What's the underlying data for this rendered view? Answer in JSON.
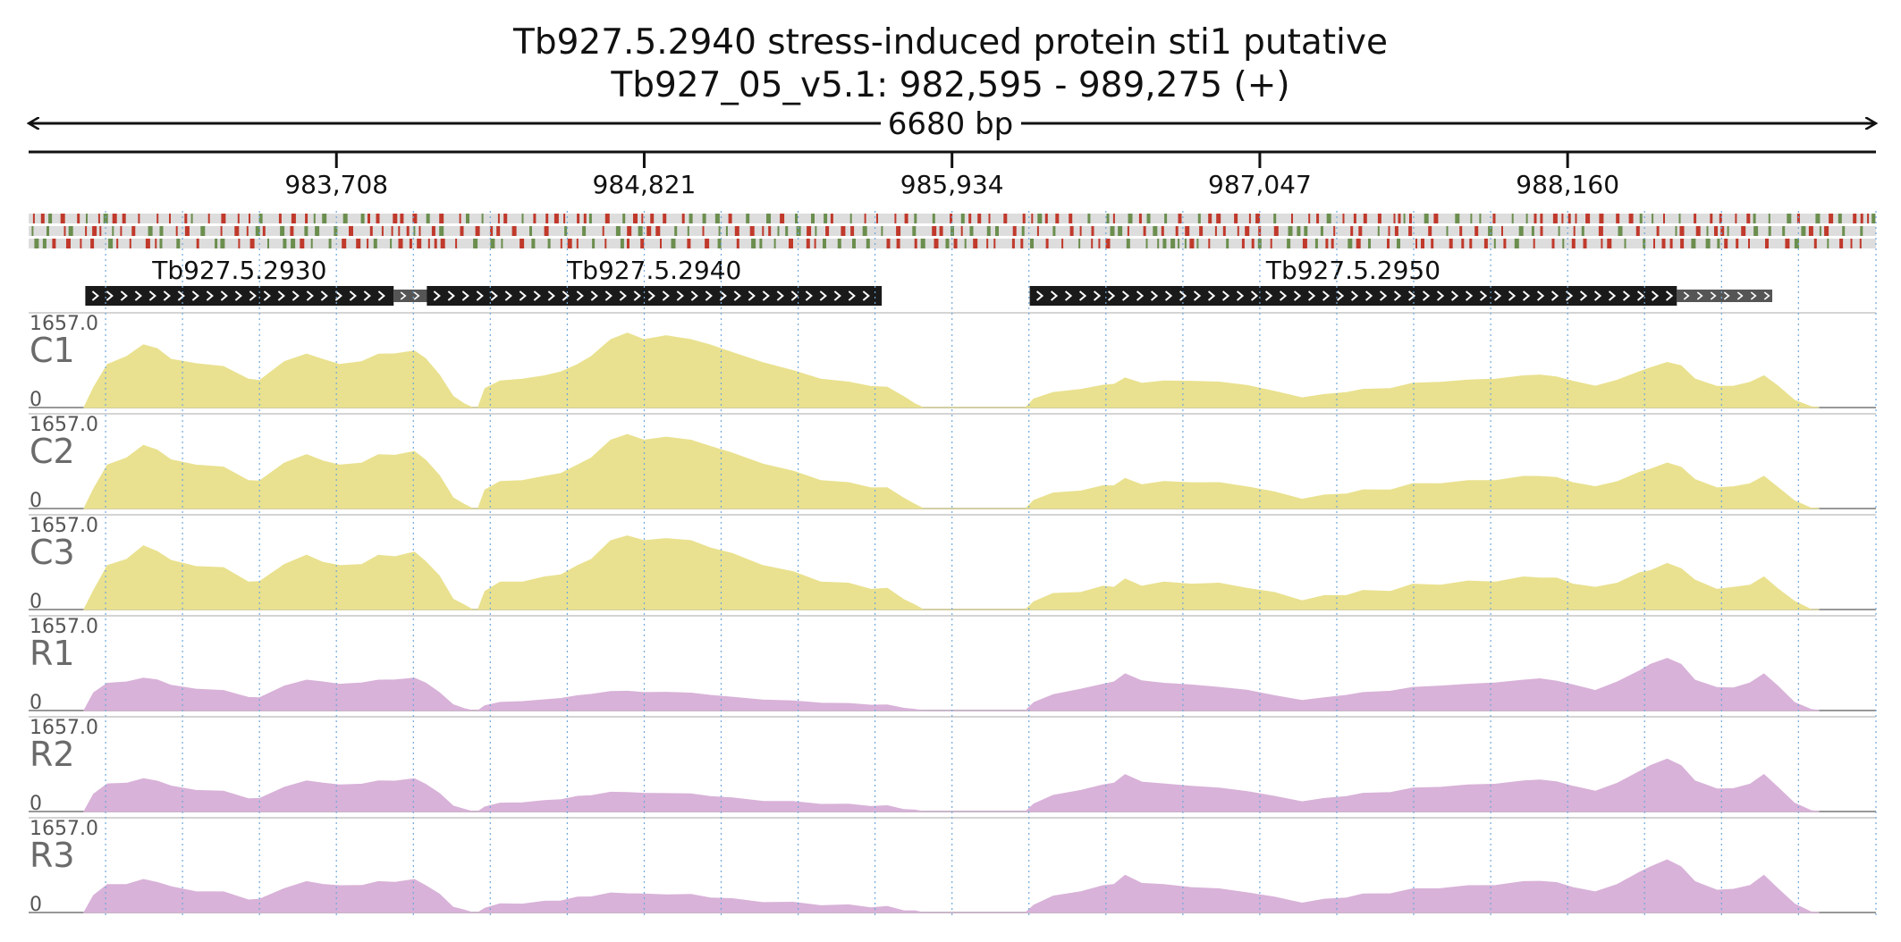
{
  "chart_data": {
    "type": "area",
    "title": "Tb927.5.2940  stress-induced protein sti1  putative",
    "subtitle": "Tb927_05_v5.1: 982,595 - 989,275 (+)",
    "span_label": "6680 bp",
    "xlim": [
      982595,
      989275
    ],
    "ticks": [
      {
        "value": 983708,
        "label": "983,708"
      },
      {
        "value": 984821,
        "label": "984,821"
      },
      {
        "value": 985934,
        "label": "985,934"
      },
      {
        "value": 987047,
        "label": "987,047"
      },
      {
        "value": 988160,
        "label": "988,160"
      }
    ],
    "genes": [
      {
        "name": "Tb927.5.2930",
        "start": 982800,
        "end": 983915,
        "utr_end": 984100,
        "strand": "+"
      },
      {
        "name": "Tb927.5.2940",
        "start": 984035,
        "end": 985680,
        "utr_end": 985680,
        "strand": "+"
      },
      {
        "name": "Tb927.5.2950",
        "start": 986215,
        "end": 988555,
        "utr_end": 988900,
        "strand": "+"
      }
    ],
    "tracks": [
      {
        "name": "C1",
        "ymax": "1657.0",
        "ymin": "0",
        "color": "#e9e18f",
        "group": "C"
      },
      {
        "name": "C2",
        "ymax": "1657.0",
        "ymin": "0",
        "color": "#e9e18f",
        "group": "C"
      },
      {
        "name": "C3",
        "ymax": "1657.0",
        "ymin": "0",
        "color": "#e9e18f",
        "group": "C"
      },
      {
        "name": "R1",
        "ymax": "1657.0",
        "ymin": "0",
        "color": "#d8b2d8",
        "group": "R"
      },
      {
        "name": "R2",
        "ymax": "1657.0",
        "ymin": "0",
        "color": "#d8b2d8",
        "group": "R"
      },
      {
        "name": "R3",
        "ymax": "1657.0",
        "ymin": "0",
        "color": "#d8b2d8",
        "group": "R"
      }
    ],
    "coverage_profiles": {
      "C": [
        [
          982795,
          0
        ],
        [
          982830,
          400
        ],
        [
          982880,
          820
        ],
        [
          982950,
          1000
        ],
        [
          983010,
          1200
        ],
        [
          983060,
          1150
        ],
        [
          983110,
          920
        ],
        [
          983200,
          860
        ],
        [
          983300,
          780
        ],
        [
          983390,
          560
        ],
        [
          983430,
          510
        ],
        [
          983520,
          900
        ],
        [
          983600,
          1020
        ],
        [
          983660,
          940
        ],
        [
          983720,
          820
        ],
        [
          983800,
          900
        ],
        [
          983860,
          1020
        ],
        [
          983920,
          1050
        ],
        [
          983990,
          1080
        ],
        [
          984030,
          960
        ],
        [
          984080,
          620
        ],
        [
          984130,
          230
        ],
        [
          984170,
          60
        ],
        [
          984200,
          0
        ],
        [
          984220,
          0
        ],
        [
          984245,
          380
        ],
        [
          984300,
          500
        ],
        [
          984380,
          560
        ],
        [
          984460,
          600
        ],
        [
          984520,
          700
        ],
        [
          984580,
          820
        ],
        [
          984630,
          1000
        ],
        [
          984700,
          1300
        ],
        [
          984760,
          1450
        ],
        [
          984820,
          1300
        ],
        [
          984900,
          1400
        ],
        [
          984990,
          1300
        ],
        [
          985060,
          1220
        ],
        [
          985140,
          1050
        ],
        [
          985250,
          880
        ],
        [
          985360,
          700
        ],
        [
          985460,
          560
        ],
        [
          985560,
          480
        ],
        [
          985640,
          420
        ],
        [
          985700,
          380
        ],
        [
          985760,
          220
        ],
        [
          985800,
          60
        ],
        [
          985830,
          0
        ],
        [
          986200,
          0
        ],
        [
          986230,
          180
        ],
        [
          986300,
          280
        ],
        [
          986400,
          360
        ],
        [
          986480,
          420
        ],
        [
          986520,
          460
        ],
        [
          986560,
          560
        ],
        [
          986620,
          480
        ],
        [
          986700,
          500
        ],
        [
          986800,
          520
        ],
        [
          986900,
          480
        ],
        [
          987000,
          440
        ],
        [
          987100,
          300
        ],
        [
          987200,
          200
        ],
        [
          987280,
          240
        ],
        [
          987360,
          300
        ],
        [
          987420,
          340
        ],
        [
          987520,
          380
        ],
        [
          987600,
          460
        ],
        [
          987700,
          500
        ],
        [
          987800,
          520
        ],
        [
          987900,
          560
        ],
        [
          988000,
          600
        ],
        [
          988060,
          640
        ],
        [
          988120,
          580
        ],
        [
          988180,
          520
        ],
        [
          988260,
          400
        ],
        [
          988340,
          540
        ],
        [
          988420,
          680
        ],
        [
          988460,
          780
        ],
        [
          988520,
          860
        ],
        [
          988570,
          820
        ],
        [
          988620,
          540
        ],
        [
          988700,
          420
        ],
        [
          988760,
          400
        ],
        [
          988820,
          500
        ],
        [
          988870,
          600
        ],
        [
          988920,
          430
        ],
        [
          988980,
          130
        ],
        [
          989040,
          30
        ],
        [
          989070,
          0
        ]
      ],
      "R": [
        [
          982795,
          0
        ],
        [
          982830,
          350
        ],
        [
          982880,
          520
        ],
        [
          982950,
          560
        ],
        [
          983010,
          620
        ],
        [
          983060,
          600
        ],
        [
          983110,
          480
        ],
        [
          983200,
          420
        ],
        [
          983300,
          380
        ],
        [
          983390,
          260
        ],
        [
          983430,
          240
        ],
        [
          983520,
          480
        ],
        [
          983600,
          580
        ],
        [
          983660,
          560
        ],
        [
          983720,
          500
        ],
        [
          983800,
          540
        ],
        [
          983860,
          580
        ],
        [
          983920,
          600
        ],
        [
          983990,
          620
        ],
        [
          984030,
          540
        ],
        [
          984080,
          340
        ],
        [
          984130,
          120
        ],
        [
          984170,
          30
        ],
        [
          984200,
          0
        ],
        [
          984220,
          0
        ],
        [
          984245,
          100
        ],
        [
          984300,
          150
        ],
        [
          984380,
          180
        ],
        [
          984460,
          200
        ],
        [
          984520,
          240
        ],
        [
          984580,
          280
        ],
        [
          984630,
          320
        ],
        [
          984700,
          360
        ],
        [
          984760,
          380
        ],
        [
          984820,
          340
        ],
        [
          984900,
          360
        ],
        [
          984990,
          330
        ],
        [
          985060,
          300
        ],
        [
          985140,
          250
        ],
        [
          985250,
          210
        ],
        [
          985360,
          180
        ],
        [
          985460,
          150
        ],
        [
          985560,
          130
        ],
        [
          985640,
          110
        ],
        [
          985700,
          100
        ],
        [
          985760,
          50
        ],
        [
          985800,
          15
        ],
        [
          985830,
          0
        ],
        [
          986200,
          0
        ],
        [
          986230,
          160
        ],
        [
          986300,
          300
        ],
        [
          986400,
          420
        ],
        [
          986480,
          500
        ],
        [
          986520,
          560
        ],
        [
          986560,
          700
        ],
        [
          986620,
          580
        ],
        [
          986700,
          520
        ],
        [
          986800,
          500
        ],
        [
          986900,
          440
        ],
        [
          987000,
          400
        ],
        [
          987100,
          280
        ],
        [
          987200,
          200
        ],
        [
          987280,
          240
        ],
        [
          987360,
          300
        ],
        [
          987420,
          340
        ],
        [
          987520,
          380
        ],
        [
          987600,
          440
        ],
        [
          987700,
          480
        ],
        [
          987800,
          500
        ],
        [
          987900,
          540
        ],
        [
          988000,
          580
        ],
        [
          988060,
          620
        ],
        [
          988120,
          560
        ],
        [
          988180,
          500
        ],
        [
          988260,
          380
        ],
        [
          988340,
          560
        ],
        [
          988420,
          760
        ],
        [
          988460,
          900
        ],
        [
          988520,
          1000
        ],
        [
          988570,
          900
        ],
        [
          988620,
          580
        ],
        [
          988700,
          450
        ],
        [
          988760,
          430
        ],
        [
          988820,
          540
        ],
        [
          988870,
          700
        ],
        [
          988920,
          480
        ],
        [
          988980,
          150
        ],
        [
          989040,
          30
        ],
        [
          989070,
          0
        ]
      ]
    },
    "grid": true
  }
}
